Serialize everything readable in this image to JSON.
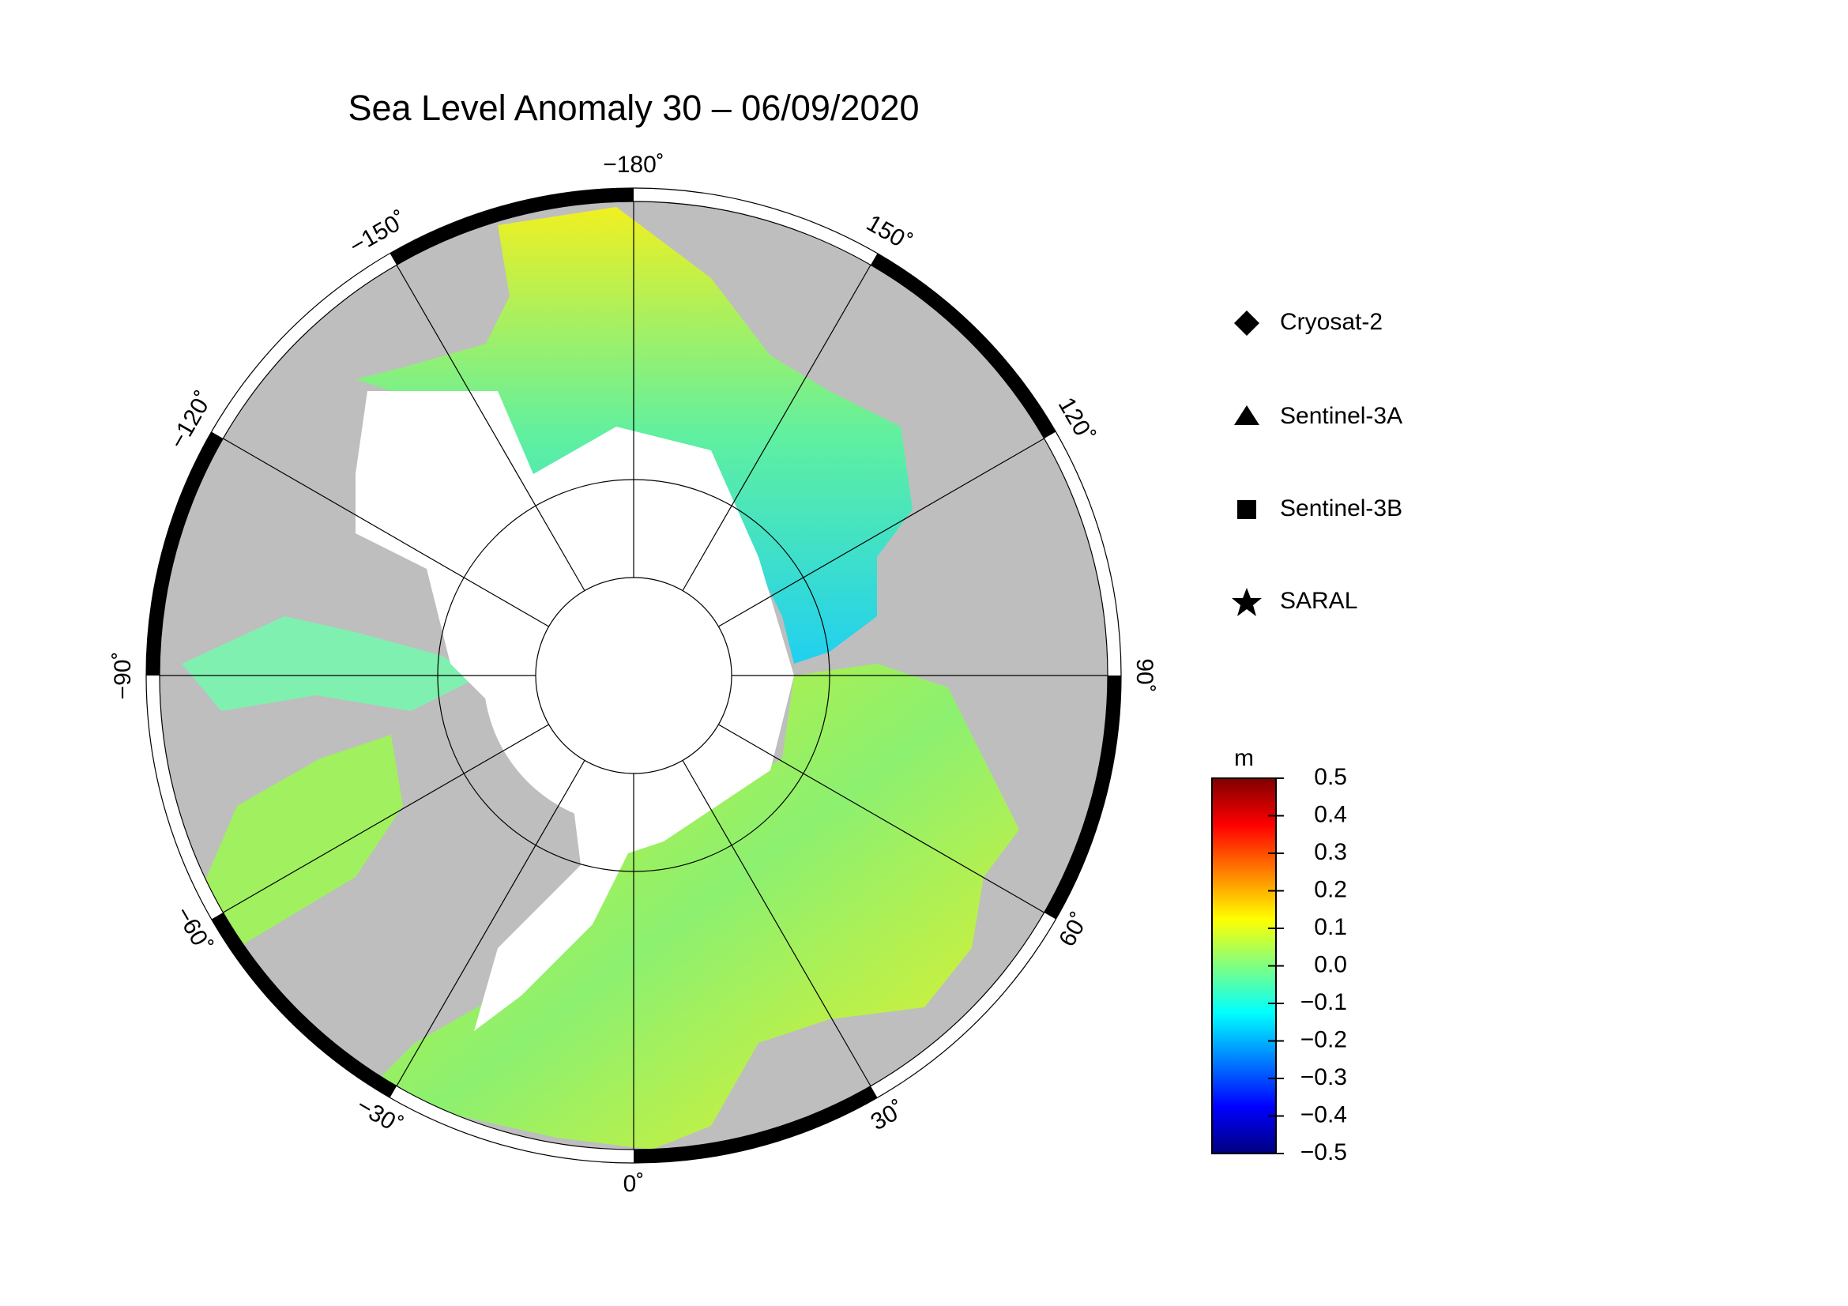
{
  "title": "Sea Level Anomaly 30 – 06/09/2020",
  "longitude_labels": [
    {
      "value": -180,
      "label": "−180˚"
    },
    {
      "value": -150,
      "label": "−150˚"
    },
    {
      "value": -120,
      "label": "−120˚"
    },
    {
      "value": -90,
      "label": "−90˚"
    },
    {
      "value": -60,
      "label": "−60˚"
    },
    {
      "value": -30,
      "label": "−30˚"
    },
    {
      "value": 0,
      "label": "0˚"
    },
    {
      "value": 30,
      "label": "30˚"
    },
    {
      "value": 60,
      "label": "60˚"
    },
    {
      "value": 90,
      "label": "90˚"
    },
    {
      "value": 120,
      "label": "120˚"
    },
    {
      "value": 150,
      "label": "150˚"
    }
  ],
  "legend": [
    "Cryosat-2",
    "Sentinel-3A",
    "Sentinel-3B",
    "SARAL"
  ],
  "colorbar": {
    "unit": "m",
    "lim": [
      -0.5,
      0.5
    ],
    "colors": [
      "#00007f",
      "#0000ff",
      "#0080ff",
      "#00ffff",
      "#80ff80",
      "#ffff00",
      "#ff8000",
      "#ff0000",
      "#7f0000"
    ],
    "ticks": [
      0.5,
      0.4,
      0.3,
      0.2,
      0.1,
      {
        "value": 0.0,
        "label": "0.0"
      },
      {
        "value": -0.1,
        "label": "−0.1"
      },
      {
        "value": -0.2,
        "label": "−0.2"
      },
      {
        "value": -0.3,
        "label": "−0.3"
      },
      {
        "value": -0.4,
        "label": "−0.4"
      },
      {
        "value": -0.5,
        "label": "−0.5"
      }
    ]
  }
}
